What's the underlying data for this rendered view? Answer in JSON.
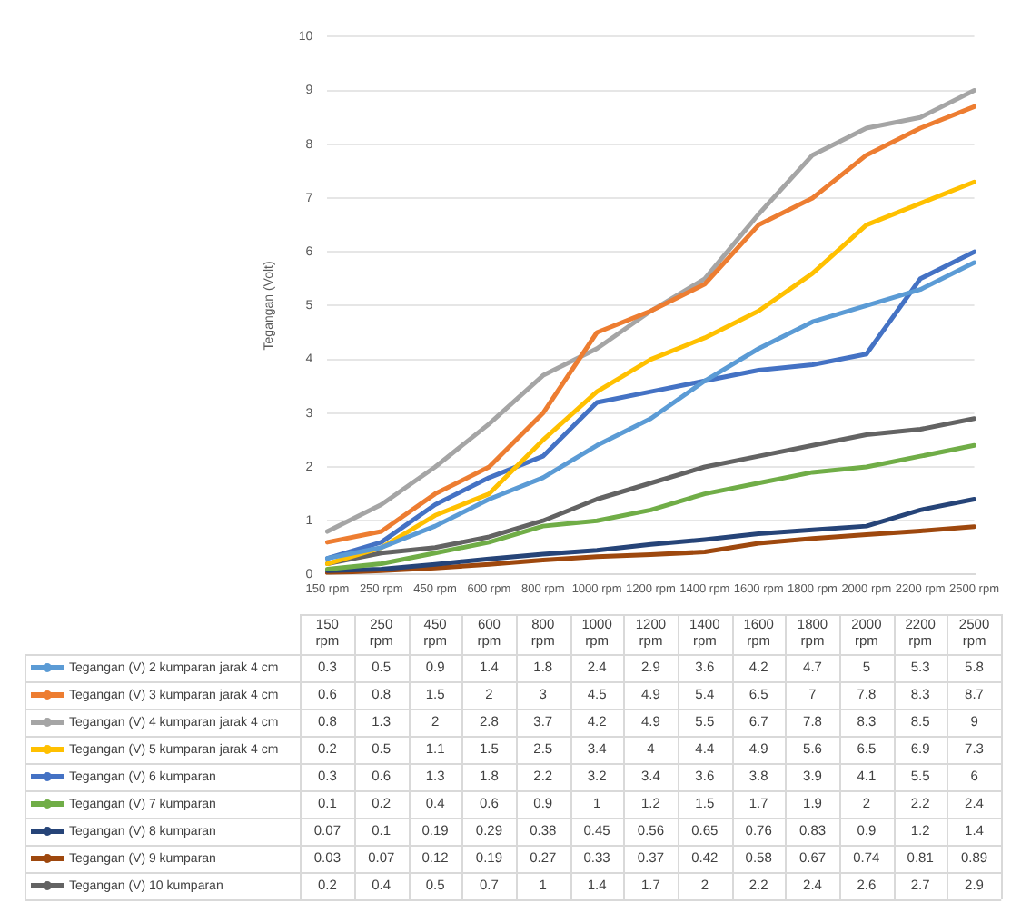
{
  "chart_data": {
    "type": "line",
    "ylabel": "Tegangan (Volt)",
    "categories": [
      "150 rpm",
      "250 rpm",
      "450 rpm",
      "600 rpm",
      "800 rpm",
      "1000 rpm",
      "1200 rpm",
      "1400 rpm",
      "1600 rpm",
      "1800 rpm",
      "2000 rpm",
      "2200 rpm",
      "2500 rpm"
    ],
    "series": [
      {
        "name": "Tegangan (V) 2 kumparan jarak 4 cm",
        "color": "#5b9bd5",
        "values": [
          0.3,
          0.5,
          0.9,
          1.4,
          1.8,
          2.4,
          2.9,
          3.6,
          4.2,
          4.7,
          5,
          5.3,
          5.8
        ]
      },
      {
        "name": "Tegangan (V) 3 kumparan jarak 4 cm",
        "color": "#ed7d31",
        "values": [
          0.6,
          0.8,
          1.5,
          2,
          3,
          4.5,
          4.9,
          5.4,
          6.5,
          7,
          7.8,
          8.3,
          8.7
        ]
      },
      {
        "name": "Tegangan (V) 4 kumparan jarak 4 cm",
        "color": "#a5a5a5",
        "values": [
          0.8,
          1.3,
          2,
          2.8,
          3.7,
          4.2,
          4.9,
          5.5,
          6.7,
          7.8,
          8.3,
          8.5,
          9
        ]
      },
      {
        "name": "Tegangan (V) 5 kumparan jarak 4 cm",
        "color": "#ffc000",
        "values": [
          0.2,
          0.5,
          1.1,
          1.5,
          2.5,
          3.4,
          4,
          4.4,
          4.9,
          5.6,
          6.5,
          6.9,
          7.3
        ]
      },
      {
        "name": "Tegangan (V) 6 kumparan",
        "color": "#4472c4",
        "values": [
          0.3,
          0.6,
          1.3,
          1.8,
          2.2,
          3.2,
          3.4,
          3.6,
          3.8,
          3.9,
          4.1,
          5.5,
          6
        ]
      },
      {
        "name": "Tegangan (V) 7 kumparan",
        "color": "#70ad47",
        "values": [
          0.1,
          0.2,
          0.4,
          0.6,
          0.9,
          1,
          1.2,
          1.5,
          1.7,
          1.9,
          2,
          2.2,
          2.4
        ]
      },
      {
        "name": "Tegangan (V) 8 kumparan",
        "color": "#264478",
        "values": [
          0.07,
          0.1,
          0.19,
          0.29,
          0.38,
          0.45,
          0.56,
          0.65,
          0.76,
          0.83,
          0.9,
          1.2,
          1.4
        ]
      },
      {
        "name": "Tegangan (V) 9 kumparan",
        "color": "#9e480e",
        "values": [
          0.03,
          0.07,
          0.12,
          0.19,
          0.27,
          0.33,
          0.37,
          0.42,
          0.58,
          0.67,
          0.74,
          0.81,
          0.89
        ]
      },
      {
        "name": "Tegangan (V) 10 kumparan",
        "color": "#636363",
        "values": [
          0.2,
          0.4,
          0.5,
          0.7,
          1,
          1.4,
          1.7,
          2,
          2.2,
          2.4,
          2.6,
          2.7,
          2.9
        ]
      }
    ],
    "ylim": [
      0,
      10
    ],
    "yticks": [
      0,
      1,
      2,
      3,
      4,
      5,
      6,
      7,
      8,
      9,
      10
    ],
    "grid": "y",
    "legend": "bottom",
    "data_labels": true
  }
}
